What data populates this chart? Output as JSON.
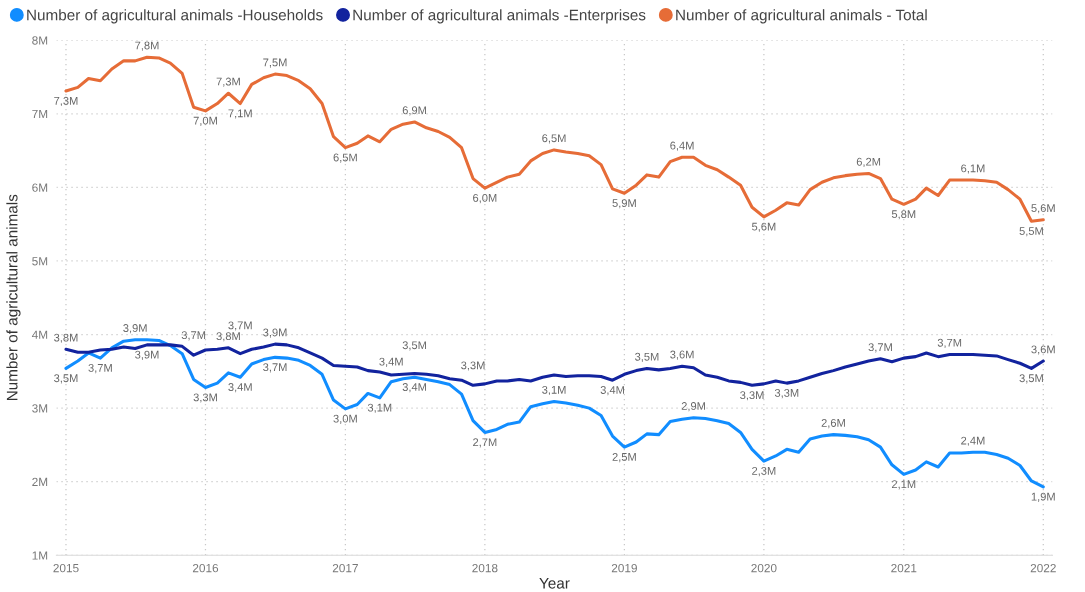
{
  "chart_data": {
    "type": "line",
    "xlabel": "Year",
    "ylabel": "Number of agricultural animals",
    "x": [
      "2015-01",
      "2015-02",
      "2015-03",
      "2015-04",
      "2015-05",
      "2015-06",
      "2015-07",
      "2015-08",
      "2015-09",
      "2015-10",
      "2015-11",
      "2015-12",
      "2016-01",
      "2016-02",
      "2016-03",
      "2016-04",
      "2016-05",
      "2016-06",
      "2016-07",
      "2016-08",
      "2016-09",
      "2016-10",
      "2016-11",
      "2016-12",
      "2017-01",
      "2017-02",
      "2017-03",
      "2017-04",
      "2017-05",
      "2017-06",
      "2017-07",
      "2017-08",
      "2017-09",
      "2017-10",
      "2017-11",
      "2017-12",
      "2018-01",
      "2018-02",
      "2018-03",
      "2018-04",
      "2018-05",
      "2018-06",
      "2018-07",
      "2018-08",
      "2018-09",
      "2018-10",
      "2018-11",
      "2018-12",
      "2019-01",
      "2019-02",
      "2019-03",
      "2019-04",
      "2019-05",
      "2019-06",
      "2019-07",
      "2019-08",
      "2019-09",
      "2019-10",
      "2019-11",
      "2019-12",
      "2020-01",
      "2020-02",
      "2020-03",
      "2020-04",
      "2020-05",
      "2020-06",
      "2020-07",
      "2020-08",
      "2020-09",
      "2020-10",
      "2020-11",
      "2020-12",
      "2021-01",
      "2021-02",
      "2021-03",
      "2021-04",
      "2021-05",
      "2021-06",
      "2021-07",
      "2021-08",
      "2021-09",
      "2021-10",
      "2021-11",
      "2021-12",
      "2022-01"
    ],
    "xlim": [
      "2014-12-07",
      "2022-01-25"
    ],
    "xticks": [
      "2015",
      "2016",
      "2017",
      "2018",
      "2019",
      "2020",
      "2021",
      "2022"
    ],
    "ylim": [
      1,
      8
    ],
    "yticks": [
      {
        "value": 1,
        "label": "1M"
      },
      {
        "value": 2,
        "label": "2M"
      },
      {
        "value": 3,
        "label": "3M"
      },
      {
        "value": 4,
        "label": "4M"
      },
      {
        "value": 5,
        "label": "5M"
      },
      {
        "value": 6,
        "label": "6M"
      },
      {
        "value": 7,
        "label": "7M"
      },
      {
        "value": 8,
        "label": "8M"
      }
    ],
    "grid": true,
    "legend": "top left",
    "line_style": "solid",
    "series": [
      {
        "name": "Number of agricultural animals -Households",
        "color": "#118dff",
        "values": [
          3.54,
          3.64,
          3.75,
          3.68,
          3.82,
          3.91,
          3.93,
          3.93,
          3.92,
          3.85,
          3.74,
          3.39,
          3.28,
          3.34,
          3.48,
          3.42,
          3.6,
          3.66,
          3.69,
          3.68,
          3.65,
          3.58,
          3.46,
          3.11,
          2.99,
          3.05,
          3.2,
          3.14,
          3.36,
          3.4,
          3.42,
          3.39,
          3.36,
          3.32,
          3.19,
          2.83,
          2.67,
          2.71,
          2.78,
          2.81,
          3.02,
          3.06,
          3.09,
          3.07,
          3.04,
          3.0,
          2.9,
          2.62,
          2.47,
          2.54,
          2.65,
          2.64,
          2.82,
          2.85,
          2.87,
          2.86,
          2.83,
          2.79,
          2.67,
          2.44,
          2.28,
          2.35,
          2.44,
          2.4,
          2.58,
          2.62,
          2.64,
          2.63,
          2.61,
          2.57,
          2.47,
          2.23,
          2.1,
          2.16,
          2.27,
          2.2,
          2.39,
          2.39,
          2.4,
          2.4,
          2.37,
          2.32,
          2.22,
          2.01,
          1.93
        ],
        "value_labels": [
          "3,5M",
          null,
          null,
          "3,7M",
          null,
          null,
          "3,9M",
          null,
          null,
          null,
          null,
          null,
          "3,3M",
          null,
          null,
          "3,4M",
          null,
          null,
          "3,7M",
          null,
          null,
          null,
          null,
          null,
          "3,0M",
          null,
          null,
          "3,1M",
          "3,4M",
          null,
          "3,4M",
          null,
          null,
          null,
          null,
          null,
          "2,7M",
          null,
          null,
          null,
          null,
          null,
          "3,1M",
          null,
          null,
          null,
          null,
          null,
          "2,5M",
          null,
          null,
          null,
          null,
          null,
          "2,9M",
          null,
          null,
          null,
          null,
          null,
          "2,3M",
          null,
          null,
          null,
          null,
          null,
          "2,6M",
          null,
          null,
          null,
          null,
          null,
          "2,1M",
          null,
          null,
          null,
          null,
          null,
          "2,4M",
          null,
          null,
          null,
          null,
          null,
          "1,9M"
        ]
      },
      {
        "name": "Number of agricultural animals -Enterprises",
        "color": "#12239e",
        "values": [
          3.8,
          3.76,
          3.76,
          3.79,
          3.8,
          3.83,
          3.81,
          3.86,
          3.86,
          3.86,
          3.84,
          3.72,
          3.79,
          3.8,
          3.82,
          3.74,
          3.8,
          3.83,
          3.87,
          3.86,
          3.82,
          3.75,
          3.68,
          3.58,
          3.57,
          3.56,
          3.51,
          3.49,
          3.45,
          3.46,
          3.47,
          3.46,
          3.44,
          3.4,
          3.38,
          3.31,
          3.33,
          3.37,
          3.37,
          3.39,
          3.37,
          3.42,
          3.45,
          3.43,
          3.44,
          3.44,
          3.43,
          3.38,
          3.46,
          3.51,
          3.54,
          3.52,
          3.54,
          3.57,
          3.55,
          3.45,
          3.42,
          3.37,
          3.35,
          3.31,
          3.33,
          3.37,
          3.34,
          3.37,
          3.42,
          3.47,
          3.51,
          3.56,
          3.6,
          3.64,
          3.67,
          3.63,
          3.68,
          3.7,
          3.75,
          3.7,
          3.73,
          3.73,
          3.73,
          3.72,
          3.71,
          3.66,
          3.61,
          3.54,
          3.64
        ],
        "value_labels": [
          "3,8M",
          null,
          null,
          null,
          null,
          null,
          null,
          "3,9M",
          null,
          null,
          null,
          "3,7M",
          null,
          null,
          "3,8M",
          "3,7M",
          null,
          null,
          "3,9M",
          null,
          null,
          null,
          null,
          null,
          null,
          null,
          null,
          null,
          null,
          null,
          "3,5M",
          null,
          null,
          null,
          null,
          "3,3M",
          null,
          null,
          null,
          null,
          null,
          null,
          null,
          null,
          null,
          null,
          null,
          "3,4M",
          null,
          null,
          "3,5M",
          null,
          null,
          "3,6M",
          null,
          null,
          null,
          null,
          null,
          "3,3M",
          null,
          null,
          "3,3M",
          null,
          null,
          null,
          null,
          null,
          null,
          null,
          "3,7M",
          null,
          null,
          null,
          null,
          null,
          "3,7M",
          null,
          null,
          null,
          null,
          null,
          null,
          "3,5M",
          "3,6M"
        ]
      },
      {
        "name": "Number of agricultural animals - Total",
        "color": "#e66c37",
        "values": [
          7.31,
          7.36,
          7.48,
          7.45,
          7.61,
          7.72,
          7.72,
          7.77,
          7.76,
          7.69,
          7.55,
          7.09,
          7.04,
          7.14,
          7.28,
          7.14,
          7.4,
          7.49,
          7.54,
          7.52,
          7.45,
          7.34,
          7.14,
          6.69,
          6.54,
          6.6,
          6.7,
          6.62,
          6.79,
          6.86,
          6.89,
          6.81,
          6.76,
          6.68,
          6.54,
          6.12,
          5.99,
          6.07,
          6.14,
          6.18,
          6.36,
          6.46,
          6.51,
          6.48,
          6.46,
          6.43,
          6.31,
          5.98,
          5.92,
          6.03,
          6.17,
          6.14,
          6.35,
          6.41,
          6.41,
          6.3,
          6.24,
          6.14,
          6.03,
          5.73,
          5.6,
          5.69,
          5.79,
          5.76,
          5.97,
          6.07,
          6.13,
          6.16,
          6.18,
          6.19,
          6.12,
          5.84,
          5.77,
          5.84,
          5.99,
          5.89,
          6.1,
          6.1,
          6.1,
          6.09,
          6.07,
          5.97,
          5.84,
          5.54,
          5.56
        ],
        "value_labels": [
          "7,3M",
          null,
          null,
          null,
          null,
          null,
          null,
          "7,8M",
          null,
          null,
          null,
          null,
          "7,0M",
          null,
          "7,3M",
          "7,1M",
          null,
          null,
          "7,5M",
          null,
          null,
          null,
          null,
          null,
          "6,5M",
          null,
          null,
          null,
          null,
          null,
          "6,9M",
          null,
          null,
          null,
          null,
          null,
          "6,0M",
          null,
          null,
          null,
          null,
          null,
          "6,5M",
          null,
          null,
          null,
          null,
          null,
          "5,9M",
          null,
          null,
          null,
          null,
          "6,4M",
          null,
          null,
          null,
          null,
          null,
          null,
          "5,6M",
          null,
          null,
          null,
          null,
          null,
          null,
          null,
          null,
          "6,2M",
          null,
          null,
          "5,8M",
          null,
          null,
          null,
          null,
          null,
          "6,1M",
          null,
          null,
          null,
          null,
          "5,5M",
          "5,6M"
        ]
      }
    ]
  }
}
